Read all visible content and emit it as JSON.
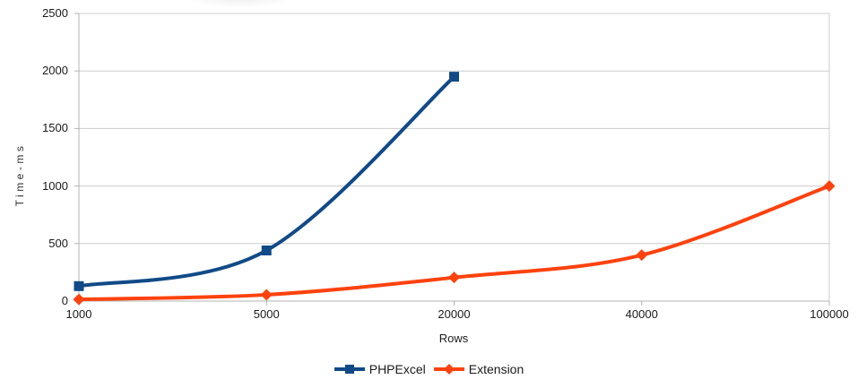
{
  "chart_data": {
    "type": "line",
    "title": "",
    "xlabel": "Rows",
    "ylabel": "Time-ms",
    "categories": [
      "1000",
      "5000",
      "20000",
      "40000",
      "100000"
    ],
    "series": [
      {
        "name": "PHPExcel",
        "color": "#114a87",
        "marker": "square",
        "values": [
          130,
          440,
          1950,
          null,
          null
        ]
      },
      {
        "name": "Extension",
        "color": "#ff420e",
        "marker": "diamond",
        "values": [
          15,
          55,
          205,
          400,
          1000
        ]
      }
    ],
    "y_ticks": [
      0,
      500,
      1000,
      1500,
      2000,
      2500
    ],
    "ylim": [
      0,
      2500
    ],
    "grid": "horizontal",
    "smooth": true,
    "legend_position": "bottom"
  },
  "colors": {
    "gridline": "#cccccc",
    "axis": "#b3b3b3",
    "tick_text": "#1a1a1a",
    "background": "#ffffff"
  }
}
